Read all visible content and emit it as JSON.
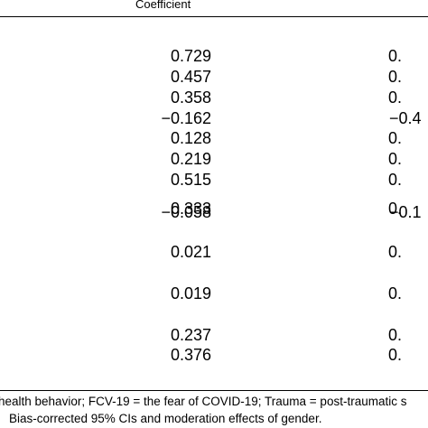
{
  "header": {
    "coefficient": "Coefficient"
  },
  "rows": [
    {
      "c1": "0.729",
      "c2": "0."
    },
    {
      "c1": "0.457",
      "c2": "0."
    },
    {
      "c1": "0.358",
      "c2": "0."
    },
    {
      "c1": "−0.162",
      "c2": "−0.4"
    },
    {
      "c1": "0.128",
      "c2": "0."
    },
    {
      "c1": "0.219",
      "c2": "0."
    },
    {
      "c1": "0.515",
      "c2": "0."
    },
    {
      "c1": "0.333",
      "c2": "0."
    },
    {
      "c1": "−0.058",
      "c2": "−0.1"
    },
    {
      "c1": "0.021",
      "c2": "0."
    },
    {
      "c1": "0.019",
      "c2": "0."
    },
    {
      "c1": "0.237",
      "c2": "0."
    },
    {
      "c1": "0.376",
      "c2": "0."
    }
  ],
  "notes": [
    "health behavior; FCV-19 = the fear of COVID-19; Trauma = post-traumatic s",
    "Bias-corrected 95% CIs and moderation effects of gender."
  ]
}
